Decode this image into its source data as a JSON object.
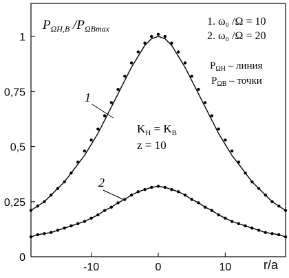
{
  "chart_data": {
    "type": "line",
    "title": "P_ΩH,B /P_ΩBmax",
    "title_parts": {
      "p1": "P",
      "sub1": "ΩH,B",
      "slash": " /",
      "p2": "P",
      "sub2": "ΩBmax"
    },
    "xlabel": "r/a",
    "ylabel": "",
    "xlim": [
      -19,
      19
    ],
    "ylim": [
      0,
      1.15
    ],
    "x_ticks": [
      -10,
      0,
      10
    ],
    "x_tick_labels": [
      "-10",
      "0",
      "10"
    ],
    "y_ticks": [
      0,
      0.25,
      0.5,
      0.75,
      1
    ],
    "y_tick_labels": [
      "0",
      "0,25",
      "0,5",
      "0,75",
      "1"
    ],
    "grid": false,
    "legend": {
      "placement": "top-right",
      "entries": [
        "1. ω₀ /Ω = 10",
        "2. ω₀ /Ω = 20"
      ]
    },
    "style_legend": {
      "line": {
        "p": "P",
        "sub": "ΩH",
        "text": " – линия"
      },
      "points": {
        "p": "P",
        "sub": "ΩB",
        "text": " – точки"
      }
    },
    "annotations": {
      "k_eq": {
        "k1": "K",
        "s1": "H",
        "eq": " = ",
        "k2": "K",
        "s2": "B"
      },
      "z": "z = 10"
    },
    "curve_labels": [
      "1",
      "2"
    ],
    "series": [
      {
        "name": "1",
        "line_x": [
          -19,
          -18,
          -17,
          -16,
          -15,
          -14,
          -13,
          -12,
          -11,
          -10,
          -9,
          -8,
          -7,
          -6,
          -5,
          -4,
          -3,
          -2,
          -1,
          0,
          1,
          2,
          3,
          4,
          5,
          6,
          7,
          8,
          9,
          10,
          11,
          12,
          13,
          14,
          15,
          16,
          17,
          18,
          19
        ],
        "line_y": [
          0.21,
          0.23,
          0.25,
          0.28,
          0.31,
          0.34,
          0.38,
          0.42,
          0.46,
          0.51,
          0.56,
          0.62,
          0.68,
          0.74,
          0.8,
          0.86,
          0.91,
          0.96,
          0.99,
          1.0,
          0.99,
          0.96,
          0.91,
          0.86,
          0.8,
          0.74,
          0.68,
          0.62,
          0.56,
          0.51,
          0.46,
          0.42,
          0.38,
          0.34,
          0.31,
          0.28,
          0.25,
          0.23,
          0.21
        ],
        "points_x": [
          -19,
          -18,
          -17,
          -16,
          -15,
          -14,
          -13,
          -12,
          -11,
          -10,
          -9,
          -8,
          -7,
          -6,
          -5,
          -4,
          -3,
          -2,
          -1,
          0,
          1,
          2,
          3,
          4,
          5,
          6,
          7,
          8,
          9,
          10,
          11,
          12,
          13,
          14,
          15,
          16,
          17,
          18,
          19
        ],
        "points_y": [
          0.21,
          0.23,
          0.25,
          0.28,
          0.31,
          0.34,
          0.38,
          0.43,
          0.48,
          0.53,
          0.58,
          0.64,
          0.7,
          0.76,
          0.82,
          0.88,
          0.93,
          0.97,
          1.0,
          1.01,
          1.0,
          0.97,
          0.93,
          0.88,
          0.82,
          0.76,
          0.7,
          0.64,
          0.58,
          0.53,
          0.48,
          0.43,
          0.38,
          0.34,
          0.31,
          0.28,
          0.25,
          0.23,
          0.21
        ]
      },
      {
        "name": "2",
        "line_x": [
          -19,
          -18,
          -17,
          -16,
          -15,
          -14,
          -13,
          -12,
          -11,
          -10,
          -9,
          -8,
          -7,
          -6,
          -5,
          -4,
          -3,
          -2,
          -1,
          0,
          1,
          2,
          3,
          4,
          5,
          6,
          7,
          8,
          9,
          10,
          11,
          12,
          13,
          14,
          15,
          16,
          17,
          18,
          19
        ],
        "line_y": [
          0.09,
          0.1,
          0.105,
          0.11,
          0.12,
          0.13,
          0.14,
          0.15,
          0.16,
          0.175,
          0.19,
          0.21,
          0.225,
          0.245,
          0.26,
          0.28,
          0.295,
          0.305,
          0.315,
          0.32,
          0.315,
          0.305,
          0.295,
          0.28,
          0.26,
          0.245,
          0.225,
          0.21,
          0.19,
          0.175,
          0.16,
          0.15,
          0.14,
          0.13,
          0.12,
          0.11,
          0.105,
          0.1,
          0.09
        ],
        "points_x": [
          -19,
          -18,
          -17,
          -16,
          -15,
          -14,
          -13,
          -12,
          -11,
          -10,
          -9,
          -8,
          -7,
          -6,
          -5,
          -4,
          -3,
          -2,
          -1,
          0,
          1,
          2,
          3,
          4,
          5,
          6,
          7,
          8,
          9,
          10,
          11,
          12,
          13,
          14,
          15,
          16,
          17,
          18,
          19
        ],
        "points_y": [
          0.09,
          0.1,
          0.105,
          0.11,
          0.12,
          0.13,
          0.14,
          0.15,
          0.16,
          0.175,
          0.19,
          0.21,
          0.225,
          0.245,
          0.26,
          0.28,
          0.295,
          0.305,
          0.315,
          0.32,
          0.315,
          0.305,
          0.295,
          0.28,
          0.26,
          0.245,
          0.225,
          0.21,
          0.19,
          0.175,
          0.16,
          0.15,
          0.14,
          0.13,
          0.12,
          0.11,
          0.105,
          0.1,
          0.09
        ]
      }
    ]
  }
}
